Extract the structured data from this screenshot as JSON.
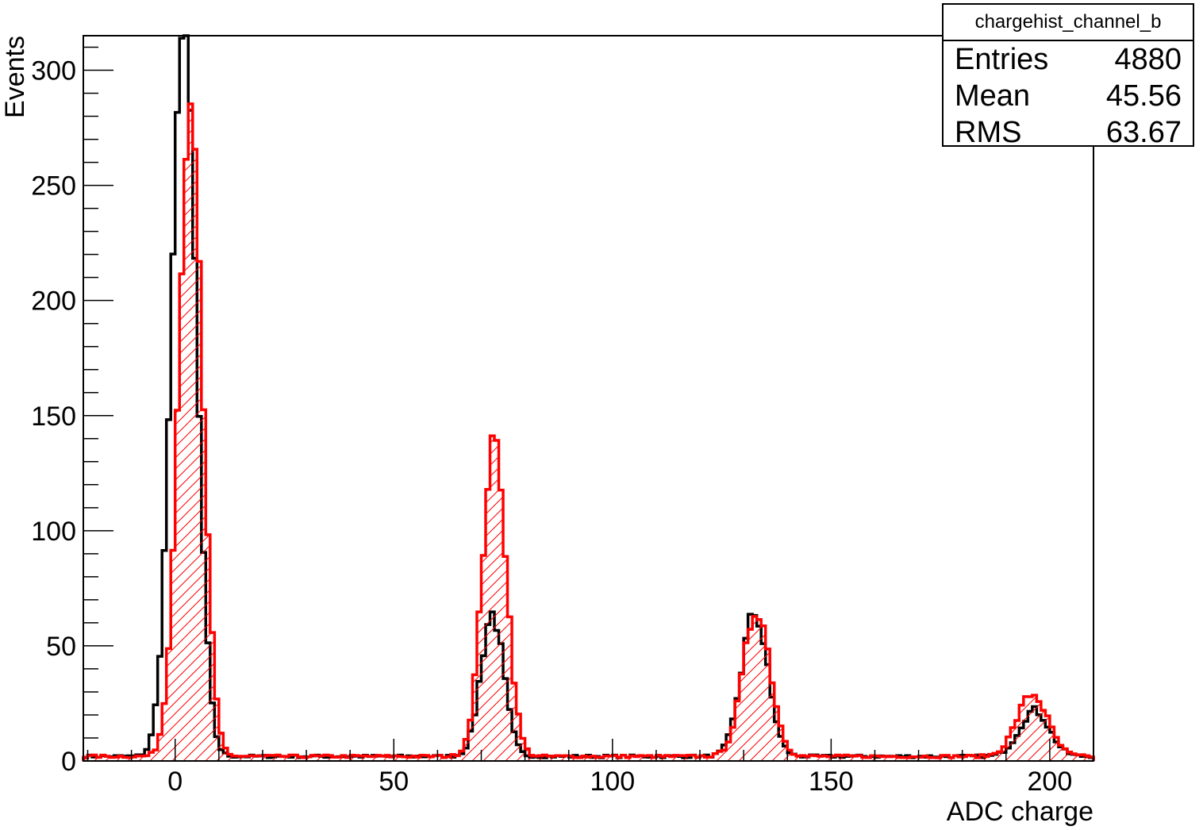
{
  "chart_data": {
    "type": "histogram",
    "xlabel": "ADC charge",
    "ylabel": "Events",
    "xlim": [
      -21,
      210
    ],
    "ylim": [
      0,
      315
    ],
    "bin_width": 1,
    "grid": false,
    "x_ticks": [
      0,
      50,
      100,
      150,
      200
    ],
    "y_ticks": [
      0,
      50,
      100,
      150,
      200,
      250,
      300
    ],
    "stats_box": {
      "title": "chargehist_channel_b",
      "rows": [
        {
          "label": "Entries",
          "value": "4880"
        },
        {
          "label": "Mean",
          "value": "45.56"
        },
        {
          "label": "RMS",
          "value": "63.67"
        }
      ]
    },
    "series": [
      {
        "color": "#000000",
        "fill": "none",
        "peaks": [
          {
            "mu": 2.0,
            "sigma": 2.8,
            "amp": 320
          },
          {
            "mu": 72.5,
            "sigma": 2.6,
            "amp": 62
          },
          {
            "mu": 132.5,
            "sigma": 3.0,
            "amp": 62
          },
          {
            "mu": 196.5,
            "sigma": 3.4,
            "amp": 20
          }
        ],
        "baseline": 2
      },
      {
        "color": "#ff0000",
        "fill": "hatch",
        "peaks": [
          {
            "mu": 3.5,
            "sigma": 2.7,
            "amp": 280
          },
          {
            "mu": 73.0,
            "sigma": 2.7,
            "amp": 138
          },
          {
            "mu": 133.0,
            "sigma": 3.1,
            "amp": 64
          },
          {
            "mu": 196.0,
            "sigma": 3.5,
            "amp": 27
          }
        ],
        "baseline": 2
      }
    ]
  }
}
